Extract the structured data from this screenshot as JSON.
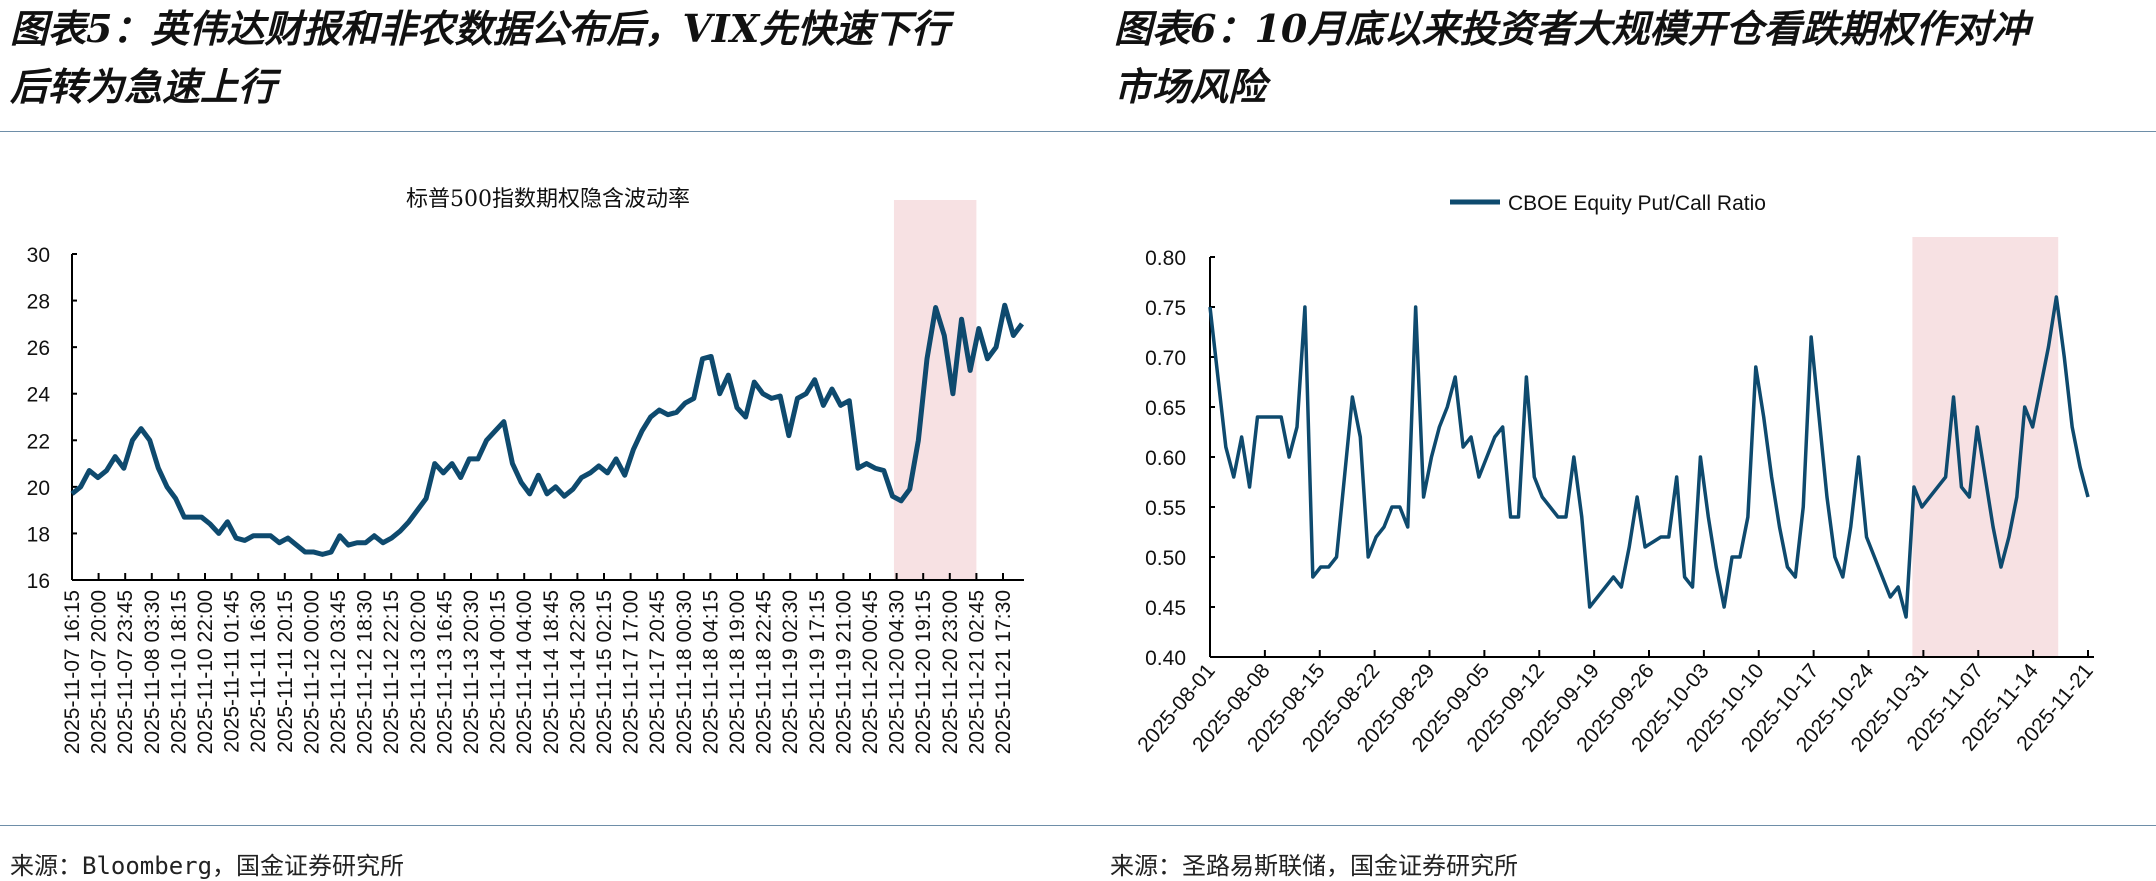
{
  "left": {
    "heading_line1": "图表5：英伟达财报和非农数据公布后，VIX先快速下行",
    "heading_line2": "后转为急速上行",
    "source": "来源：Bloomberg，国金证券研究所"
  },
  "right": {
    "heading_line1": "图表6：10月底以来投资者大规模开仓看跌期权作对冲",
    "heading_line2": "市场风险",
    "source": "来源：圣路易斯联储，国金证券研究所"
  },
  "colors": {
    "line": "#0e4a6e",
    "highlight": "#f7e1e3",
    "axis": "#000000"
  },
  "chart_data": [
    {
      "type": "line",
      "title": "标普500指数期权隐含波动率",
      "ylim": [
        16,
        30
      ],
      "yticks": [
        16,
        18,
        20,
        22,
        24,
        26,
        28,
        30
      ],
      "x_labels": [
        "2025-11-07 16:15",
        "2025-11-07 20:00",
        "2025-11-07 23:45",
        "2025-11-08 03:30",
        "2025-11-10 18:15",
        "2025-11-10 22:00",
        "2025-11-11 01:45",
        "2025-11-11 16:30",
        "2025-11-11 20:15",
        "2025-11-12 00:00",
        "2025-11-12 03:45",
        "2025-11-12 18:30",
        "2025-11-12 22:15",
        "2025-11-13 02:00",
        "2025-11-13 16:45",
        "2025-11-13 20:30",
        "2025-11-14 00:15",
        "2025-11-14 04:00",
        "2025-11-14 18:45",
        "2025-11-14 22:30",
        "2025-11-15 02:15",
        "2025-11-17 17:00",
        "2025-11-17 20:45",
        "2025-11-18 00:30",
        "2025-11-18 04:15",
        "2025-11-18 19:00",
        "2025-11-18 22:45",
        "2025-11-19 02:30",
        "2025-11-19 17:15",
        "2025-11-19 21:00",
        "2025-11-20 00:45",
        "2025-11-20 04:30",
        "2025-11-20 19:15",
        "2025-11-20 23:00",
        "2025-11-21 02:45",
        "2025-11-21 17:30"
      ],
      "highlight_label_range": [
        30.9,
        34.0
      ],
      "values": [
        19.7,
        20.0,
        20.7,
        20.4,
        20.7,
        21.3,
        20.8,
        22.0,
        22.5,
        22.0,
        20.8,
        20.0,
        19.5,
        18.7,
        18.7,
        18.7,
        18.4,
        18.0,
        18.5,
        17.8,
        17.7,
        17.9,
        17.9,
        17.9,
        17.6,
        17.8,
        17.5,
        17.2,
        17.2,
        17.1,
        17.2,
        17.9,
        17.5,
        17.6,
        17.6,
        17.9,
        17.6,
        17.8,
        18.1,
        18.5,
        19.0,
        19.5,
        21.0,
        20.6,
        21.0,
        20.4,
        21.2,
        21.2,
        22.0,
        22.4,
        22.8,
        21.0,
        20.2,
        19.7,
        20.5,
        19.7,
        20.0,
        19.6,
        19.9,
        20.4,
        20.6,
        20.9,
        20.6,
        21.2,
        20.5,
        21.6,
        22.4,
        23.0,
        23.3,
        23.1,
        23.2,
        23.6,
        23.8,
        25.5,
        25.6,
        24.0,
        24.8,
        23.4,
        23.0,
        24.5,
        24.0,
        23.8,
        23.9,
        22.2,
        23.8,
        24.0,
        24.6,
        23.5,
        24.2,
        23.5,
        23.7,
        20.8,
        21.0,
        20.8,
        20.7,
        19.6,
        19.4,
        19.9,
        22.0,
        25.5,
        27.7,
        26.5,
        24.0,
        27.2,
        25.0,
        26.8,
        25.5,
        26.0,
        27.8,
        26.5,
        27.0
      ]
    },
    {
      "type": "line",
      "legend": "CBOE Equity Put/Call Ratio",
      "legend_position": "top-center",
      "ylim": [
        0.4,
        0.8
      ],
      "yticks": [
        "0.40",
        "0.45",
        "0.50",
        "0.55",
        "0.60",
        "0.65",
        "0.70",
        "0.75",
        "0.80"
      ],
      "x_labels": [
        "2025-08-01",
        "2025-08-08",
        "2025-08-15",
        "2025-08-22",
        "2025-08-29",
        "2025-09-05",
        "2025-09-12",
        "2025-09-19",
        "2025-09-26",
        "2025-10-03",
        "2025-10-10",
        "2025-10-17",
        "2025-10-24",
        "2025-10-31",
        "2025-11-07",
        "2025-11-14",
        "2025-11-21"
      ],
      "x_range_days": [
        0,
        112
      ],
      "highlight_day_range": [
        89.6,
        108.2
      ],
      "values": [
        0.75,
        0.68,
        0.61,
        0.58,
        0.62,
        0.57,
        0.64,
        0.64,
        0.64,
        0.64,
        0.6,
        0.63,
        0.75,
        0.48,
        0.49,
        0.49,
        0.5,
        0.58,
        0.66,
        0.62,
        0.5,
        0.52,
        0.53,
        0.55,
        0.55,
        0.53,
        0.75,
        0.56,
        0.6,
        0.63,
        0.65,
        0.68,
        0.61,
        0.62,
        0.58,
        0.6,
        0.62,
        0.63,
        0.54,
        0.54,
        0.68,
        0.58,
        0.56,
        0.55,
        0.54,
        0.54,
        0.6,
        0.54,
        0.45,
        0.46,
        0.47,
        0.48,
        0.47,
        0.51,
        0.56,
        0.51,
        0.515,
        0.52,
        0.52,
        0.58,
        0.48,
        0.47,
        0.6,
        0.54,
        0.49,
        0.45,
        0.5,
        0.5,
        0.54,
        0.69,
        0.64,
        0.58,
        0.53,
        0.49,
        0.48,
        0.55,
        0.72,
        0.64,
        0.56,
        0.5,
        0.48,
        0.53,
        0.6,
        0.52,
        0.5,
        0.48,
        0.46,
        0.47,
        0.44,
        0.57,
        0.55,
        0.56,
        0.57,
        0.58,
        0.66,
        0.57,
        0.56,
        0.63,
        0.58,
        0.53,
        0.49,
        0.52,
        0.56,
        0.65,
        0.63,
        0.67,
        0.71,
        0.76,
        0.7,
        0.63,
        0.59,
        0.56
      ]
    }
  ]
}
